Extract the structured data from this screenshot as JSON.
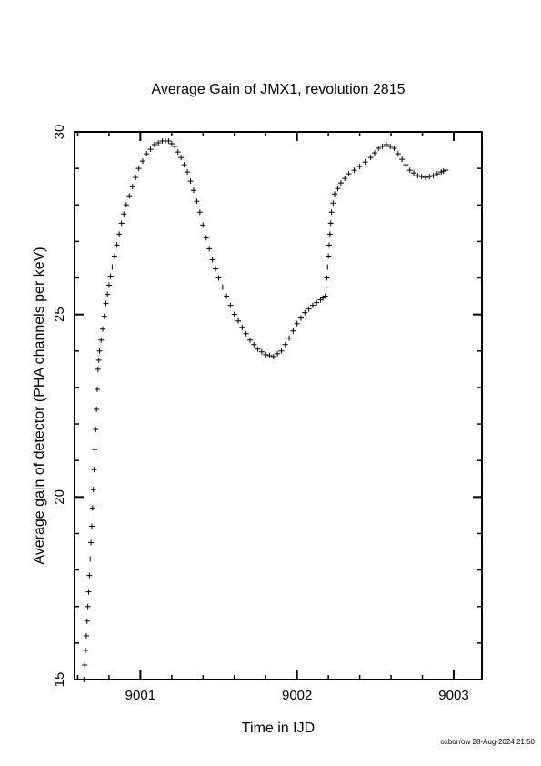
{
  "chart_data": {
    "type": "scatter",
    "title": "Average Gain of JMX1, revolution 2815",
    "xlabel": "Time in IJD",
    "ylabel": "Average gain of detector (PHA channels per keV)",
    "xlim": [
      9000.58,
      9003.18
    ],
    "ylim": [
      15,
      30
    ],
    "xticks": [
      9001,
      9002,
      9003
    ],
    "yticks": [
      15,
      20,
      25,
      30
    ],
    "marker": "plus",
    "marker_color": "#000000",
    "grid": false,
    "legend": "none",
    "series": [
      {
        "points": [
          [
            9000.64,
            15.0
          ],
          [
            9000.65,
            15.8
          ],
          [
            9000.66,
            16.6
          ],
          [
            9000.67,
            17.4
          ],
          [
            9000.68,
            18.3
          ],
          [
            9000.69,
            19.2
          ],
          [
            9000.7,
            20.2
          ],
          [
            9000.71,
            21.3
          ],
          [
            9000.72,
            22.4
          ],
          [
            9000.73,
            23.5
          ],
          [
            9000.74,
            24.0
          ],
          [
            9000.76,
            24.6
          ],
          [
            9000.78,
            25.3
          ],
          [
            9000.8,
            25.8
          ],
          [
            9000.82,
            26.3
          ],
          [
            9000.85,
            26.9
          ],
          [
            9000.88,
            27.5
          ],
          [
            9000.91,
            28.0
          ],
          [
            9000.95,
            28.5
          ],
          [
            9000.99,
            29.0
          ],
          [
            9001.04,
            29.4
          ],
          [
            9001.09,
            29.65
          ],
          [
            9001.14,
            29.75
          ],
          [
            9001.18,
            29.75
          ],
          [
            9001.22,
            29.6
          ],
          [
            9001.26,
            29.3
          ],
          [
            9001.3,
            28.9
          ],
          [
            9001.34,
            28.4
          ],
          [
            9001.38,
            27.8
          ],
          [
            9001.42,
            27.1
          ],
          [
            9001.46,
            26.5
          ],
          [
            9001.5,
            26.0
          ],
          [
            9001.55,
            25.5
          ],
          [
            9001.6,
            25.0
          ],
          [
            9001.65,
            24.65
          ],
          [
            9001.7,
            24.3
          ],
          [
            9001.75,
            24.05
          ],
          [
            9001.8,
            23.9
          ],
          [
            9001.85,
            23.85
          ],
          [
            9001.9,
            24.0
          ],
          [
            9001.95,
            24.35
          ],
          [
            9002.0,
            24.75
          ],
          [
            9002.05,
            25.05
          ],
          [
            9002.1,
            25.25
          ],
          [
            9002.15,
            25.4
          ],
          [
            9002.18,
            25.5
          ],
          [
            9002.19,
            26.0
          ],
          [
            9002.2,
            26.6
          ],
          [
            9002.21,
            27.2
          ],
          [
            9002.22,
            27.8
          ],
          [
            9002.24,
            28.3
          ],
          [
            9002.28,
            28.6
          ],
          [
            9002.33,
            28.85
          ],
          [
            9002.4,
            29.05
          ],
          [
            9002.47,
            29.3
          ],
          [
            9002.52,
            29.55
          ],
          [
            9002.57,
            29.65
          ],
          [
            9002.62,
            29.55
          ],
          [
            9002.67,
            29.25
          ],
          [
            9002.72,
            28.95
          ],
          [
            9002.77,
            28.8
          ],
          [
            9002.82,
            28.75
          ],
          [
            9002.87,
            28.8
          ],
          [
            9002.92,
            28.9
          ],
          [
            9002.95,
            28.95
          ]
        ]
      }
    ]
  },
  "footer": {
    "stamp": "oxborrow 28-Aug-2024 21:50"
  }
}
